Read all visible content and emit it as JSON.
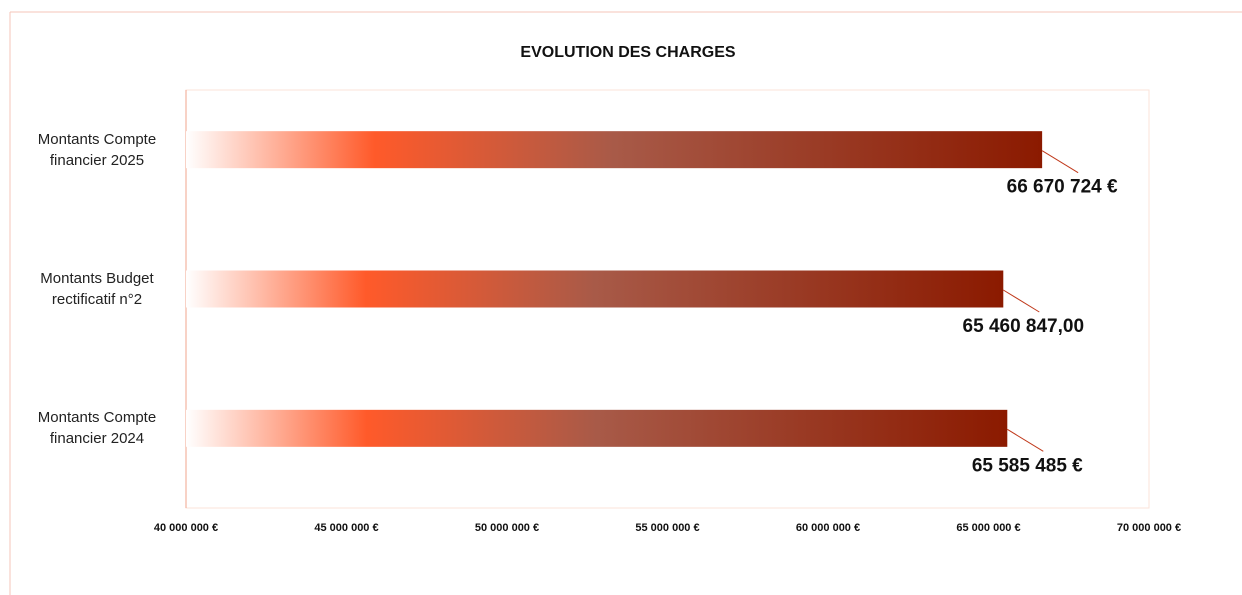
{
  "chart_data": {
    "type": "barh",
    "title": "EVOLUTION DES CHARGES",
    "categories": [
      "Montants Compte financier 2025",
      "Montants Budget rectificatif n°2",
      "Montants Compte financier 2024"
    ],
    "values": [
      66670724,
      65460847,
      65585485
    ],
    "value_labels": [
      "66 670 724 €",
      "65 460 847,00",
      "65 585 485 €"
    ],
    "colors": [
      "#ffffff",
      "#ff5a2a",
      "#a85a48",
      "#8b1a00"
    ],
    "xlim": [
      40000000,
      70000000
    ],
    "xticks": [
      {
        "value": 40000000,
        "label": "40 000 000 €"
      },
      {
        "value": 45000000,
        "label": "45 000 000 €"
      },
      {
        "value": 50000000,
        "label": "50 000 000 €"
      },
      {
        "value": 55000000,
        "label": "55 000 000 €"
      },
      {
        "value": 60000000,
        "label": "60 000 000 €"
      },
      {
        "value": 65000000,
        "label": "65 000 000 €"
      },
      {
        "value": 70000000,
        "label": "70 000 000 €"
      }
    ],
    "grid": false
  }
}
